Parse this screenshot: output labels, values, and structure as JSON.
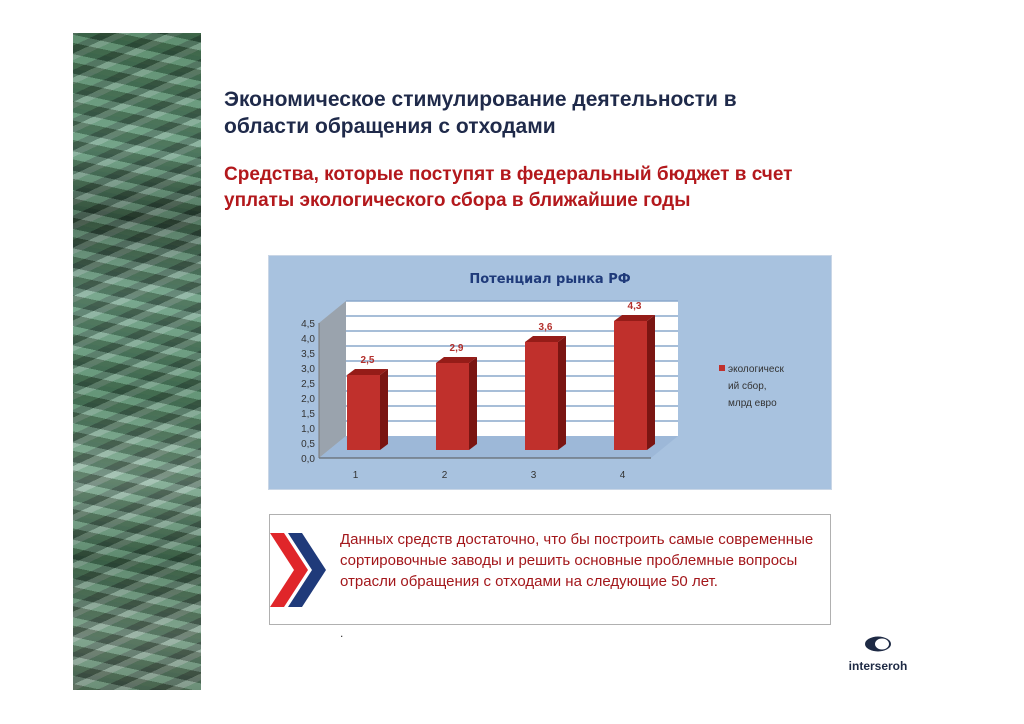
{
  "slide": {
    "title_line1": "Экономическое стимулирование деятельности в",
    "title_line2": "области обращения с отходами",
    "subtitle_line1": "Средства, которые поступят в федеральный бюджет в счет",
    "subtitle_line2": "уплаты экологического сбора в ближайшие годы",
    "note_text": "Данных средств достаточно, что бы построить самые современные сортировочные заводы и решить основные проблемные вопросы отрасли обращения с отходами на следующие 50 лет.",
    "dot": ".",
    "logo_text": "interseroh"
  },
  "colors": {
    "title": "#1f2a4a",
    "accent_red": "#b3181c",
    "chart_bg": "#a8c2df",
    "bar": "#c0302c",
    "chevron_blue": "#1f3a7a"
  },
  "chart_data": {
    "type": "bar",
    "title": "Потенциал рынка РФ",
    "categories": [
      "1",
      "2",
      "3",
      "4"
    ],
    "series": [
      {
        "name": "экологический сбор, млрд евро",
        "values": [
          2.5,
          2.9,
          3.6,
          4.3
        ]
      }
    ],
    "data_labels": [
      "2,5",
      "2,9",
      "3,6",
      "4,3"
    ],
    "legend_lines": [
      "экологическ",
      "ий сбор,",
      "млрд евро"
    ],
    "legend_position": "right",
    "yticks": [
      "0,0",
      "0,5",
      "1,0",
      "1,5",
      "2,0",
      "2,5",
      "3,0",
      "3,5",
      "4,0",
      "4,5"
    ],
    "ylim": [
      0,
      4.5
    ],
    "grid": true,
    "style": "3d-column"
  }
}
